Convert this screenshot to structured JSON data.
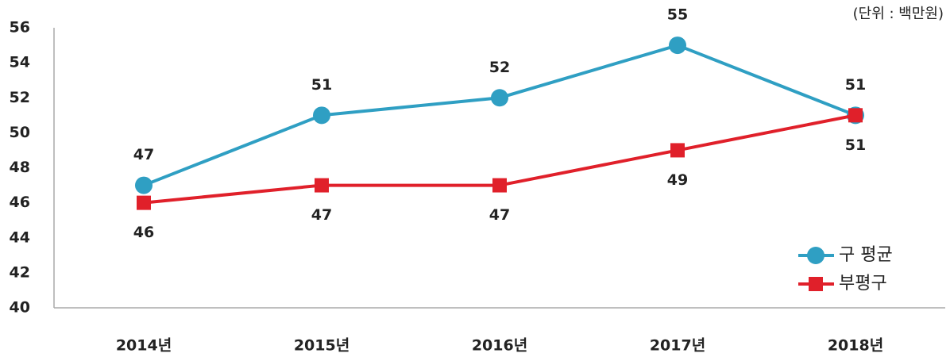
{
  "chart_data": {
    "type": "line",
    "annotation": "(단위 : 백만원)",
    "categories": [
      "2014년",
      "2015년",
      "2016년",
      "2017년",
      "2018년"
    ],
    "series": [
      {
        "name": "구 평균",
        "color": "#2f9fc3",
        "marker": "circle",
        "values": [
          47,
          51,
          52,
          55,
          51
        ]
      },
      {
        "name": "부평구",
        "color": "#e0202a",
        "marker": "square",
        "values": [
          46,
          47,
          47,
          49,
          51
        ]
      }
    ],
    "ylim": [
      40,
      56
    ],
    "yticks": [
      40,
      42,
      44,
      46,
      48,
      50,
      52,
      54,
      56
    ],
    "grid": false,
    "legend": "lower right"
  }
}
